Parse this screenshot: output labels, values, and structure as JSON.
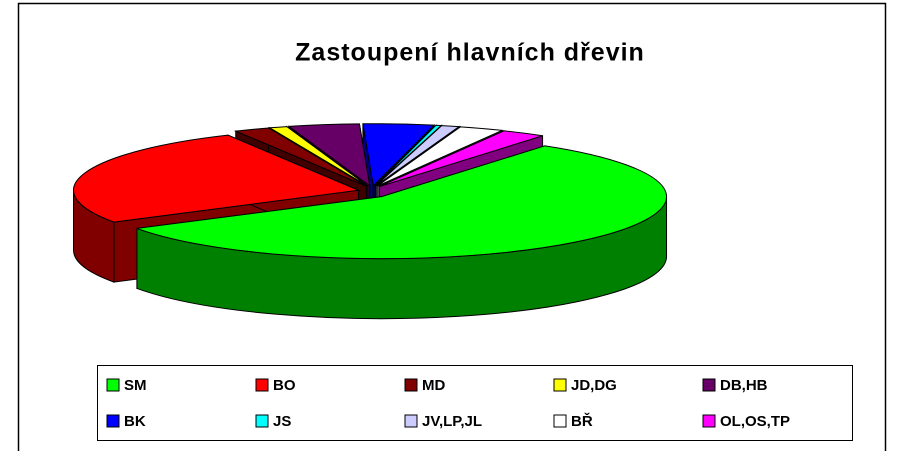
{
  "chart_data": {
    "type": "pie",
    "title": "Zastoupení hlavních dřevin",
    "categories": [
      "SM",
      "BO",
      "MD",
      "JD,DG",
      "DB,HB",
      "BK",
      "JS",
      "JV,LP,JL",
      "BŘ",
      "OL,OS,TP"
    ],
    "values": [
      56.7,
      26,
      2,
      1,
      4,
      4,
      0.3,
      1,
      2.5,
      2.5
    ],
    "colors": [
      "#00ff00",
      "#ff0000",
      "#800000",
      "#ffff00",
      "#660066",
      "#0000ff",
      "#00ffff",
      "#ccccff",
      "#ffffff",
      "#ff00ff"
    ]
  }
}
